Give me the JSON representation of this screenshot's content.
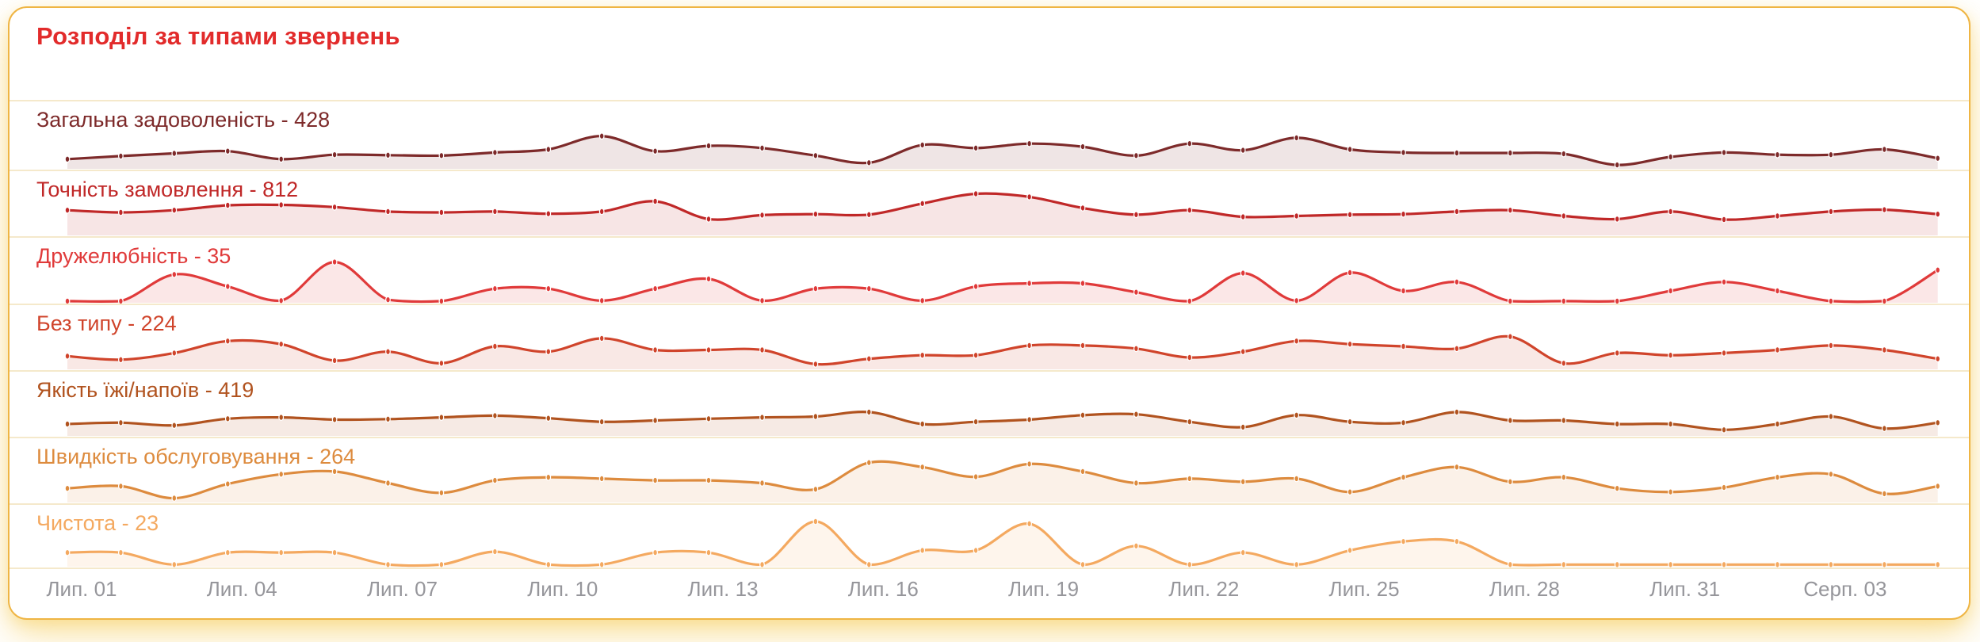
{
  "card": {
    "border_color": "#efb544",
    "divider_color": "#f5e9cb",
    "glow_color": "#f6ca50",
    "title_color": "#e22b2b",
    "axis_text_color": "#96969b"
  },
  "chart_data": {
    "type": "area",
    "title": "Розподіл за типами звернень",
    "subtitle": "",
    "xlabel": "",
    "ylabel": "",
    "label_separator": " - ",
    "points_per_series": 36,
    "ylim": [
      0,
      100
    ],
    "note": "y values are normalized sparkline heights (0-100) read from pixels; each row is scaled to its own maximum",
    "x_tick_labels": [
      "Лип. 01",
      "Лип. 04",
      "Лип. 07",
      "Лип. 10",
      "Лип. 13",
      "Лип. 16",
      "Лип. 19",
      "Лип. 22",
      "Лип. 25",
      "Лип. 28",
      "Лип. 31",
      "Серп. 03"
    ],
    "x_tick_indices": [
      0,
      3,
      6,
      9,
      12,
      15,
      18,
      21,
      24,
      27,
      30,
      33
    ],
    "legend_position": "none",
    "grid": false,
    "series": [
      {
        "name": "Загальна задоволеність",
        "count": 428,
        "color": "#7d2a2a",
        "values": [
          20,
          27,
          33,
          38,
          20,
          30,
          29,
          28,
          35,
          42,
          72,
          38,
          50,
          45,
          28,
          12,
          52,
          45,
          55,
          48,
          28,
          55,
          40,
          68,
          42,
          35,
          34,
          34,
          32,
          7,
          25,
          35,
          30,
          30,
          42,
          22
        ]
      },
      {
        "name": "Точність замовлення",
        "count": 812,
        "color": "#c02828",
        "values": [
          55,
          50,
          55,
          66,
          67,
          62,
          52,
          50,
          52,
          47,
          52,
          75,
          35,
          44,
          46,
          45,
          70,
          92,
          85,
          60,
          45,
          55,
          40,
          42,
          45,
          46,
          52,
          55,
          42,
          35,
          52,
          34,
          42,
          52,
          56,
          46
        ]
      },
      {
        "name": "Дружелюбність",
        "count": 35,
        "color": "#e03a3a",
        "values": [
          2,
          2,
          62,
          35,
          3,
          90,
          5,
          2,
          30,
          30,
          3,
          30,
          52,
          3,
          30,
          30,
          3,
          35,
          42,
          42,
          22,
          2,
          65,
          3,
          66,
          25,
          45,
          2,
          2,
          2,
          25,
          45,
          25,
          2,
          2,
          72
        ]
      },
      {
        "name": "Без типу",
        "count": 224,
        "color": "#d0442b",
        "values": [
          28,
          20,
          35,
          62,
          55,
          18,
          38,
          12,
          50,
          38,
          68,
          42,
          42,
          42,
          10,
          22,
          30,
          30,
          52,
          52,
          45,
          25,
          38,
          62,
          55,
          50,
          45,
          72,
          12,
          35,
          30,
          35,
          42,
          52,
          42,
          22
        ]
      },
      {
        "name": "Якість їжі/напоїв",
        "count": 419,
        "color": "#b1531f",
        "values": [
          25,
          28,
          22,
          37,
          40,
          35,
          36,
          40,
          44,
          38,
          30,
          33,
          37,
          40,
          42,
          52,
          25,
          30,
          35,
          45,
          47,
          30,
          18,
          45,
          30,
          28,
          52,
          33,
          33,
          25,
          25,
          12,
          25,
          42,
          15,
          28
        ]
      },
      {
        "name": "Швидкість обслуговування",
        "count": 264,
        "color": "#dd8b3e",
        "values": [
          30,
          35,
          8,
          40,
          62,
          68,
          42,
          20,
          48,
          55,
          52,
          48,
          48,
          42,
          28,
          88,
          78,
          56,
          85,
          68,
          42,
          52,
          45,
          52,
          22,
          55,
          78,
          45,
          55,
          30,
          22,
          32,
          55,
          62,
          18,
          35
        ]
      },
      {
        "name": "Чистота",
        "count": 23,
        "color": "#f4a960",
        "values": [
          30,
          30,
          3,
          30,
          30,
          30,
          3,
          3,
          32,
          3,
          3,
          30,
          30,
          3,
          100,
          3,
          35,
          35,
          95,
          3,
          45,
          3,
          30,
          3,
          35,
          55,
          55,
          3,
          3,
          3,
          3,
          3,
          3,
          3,
          3,
          3
        ]
      }
    ]
  },
  "layout": {
    "row_tops": [
      116,
      204,
      288,
      373,
      457,
      541,
      625
    ],
    "rows_end": 706,
    "first_point_x": 73,
    "point_spacing": 67.42
  }
}
